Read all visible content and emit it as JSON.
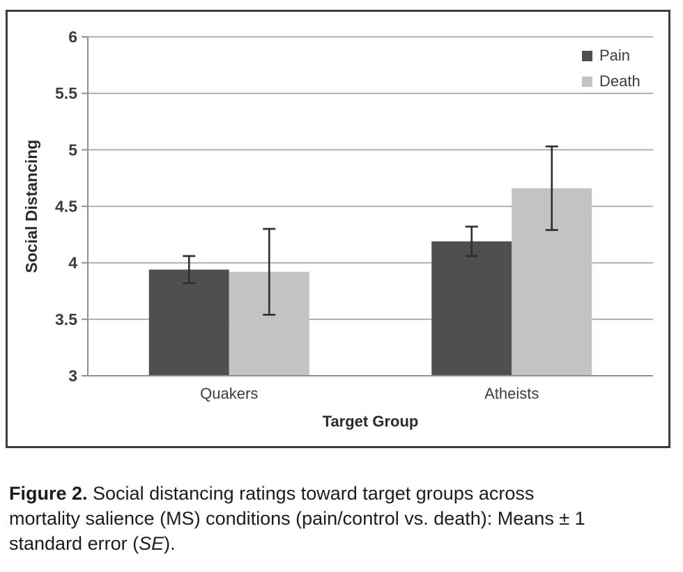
{
  "caption": {
    "label": "Figure 2.",
    "line1_rest": " Social distancing ratings toward target groups across",
    "line2": "mortality salience (MS) conditions (pain/control vs. death): Means ± 1",
    "line3_pre": "standard error (",
    "line3_italic": "SE",
    "line3_post": ")."
  },
  "chart_data": {
    "type": "bar",
    "title": "",
    "xlabel": "Target Group",
    "ylabel": "Social Distancing",
    "categories": [
      "Quakers",
      "Atheists"
    ],
    "series": [
      {
        "name": "Pain",
        "color": "#4f4f4f",
        "values": [
          3.94,
          4.19
        ],
        "errors": [
          0.12,
          0.13
        ]
      },
      {
        "name": "Death",
        "color": "#c3c3c3",
        "values": [
          3.92,
          4.66
        ],
        "errors": [
          0.38,
          0.37
        ]
      }
    ],
    "ylim": [
      3,
      6
    ],
    "yticks": [
      "3",
      "3.5",
      "4",
      "4.5",
      "5",
      "5.5",
      "6"
    ],
    "grid": true,
    "legend_position": "top-right",
    "error_bar_note": "means ± 1 SE",
    "colors": {
      "gridline": "#a9a9a9",
      "axis": "#8f8f8f",
      "error_bar": "#2e2e2e",
      "tick_text": "#3c3c3c",
      "title_text": "#2b2b2b",
      "border": "#3d3d3d"
    }
  }
}
